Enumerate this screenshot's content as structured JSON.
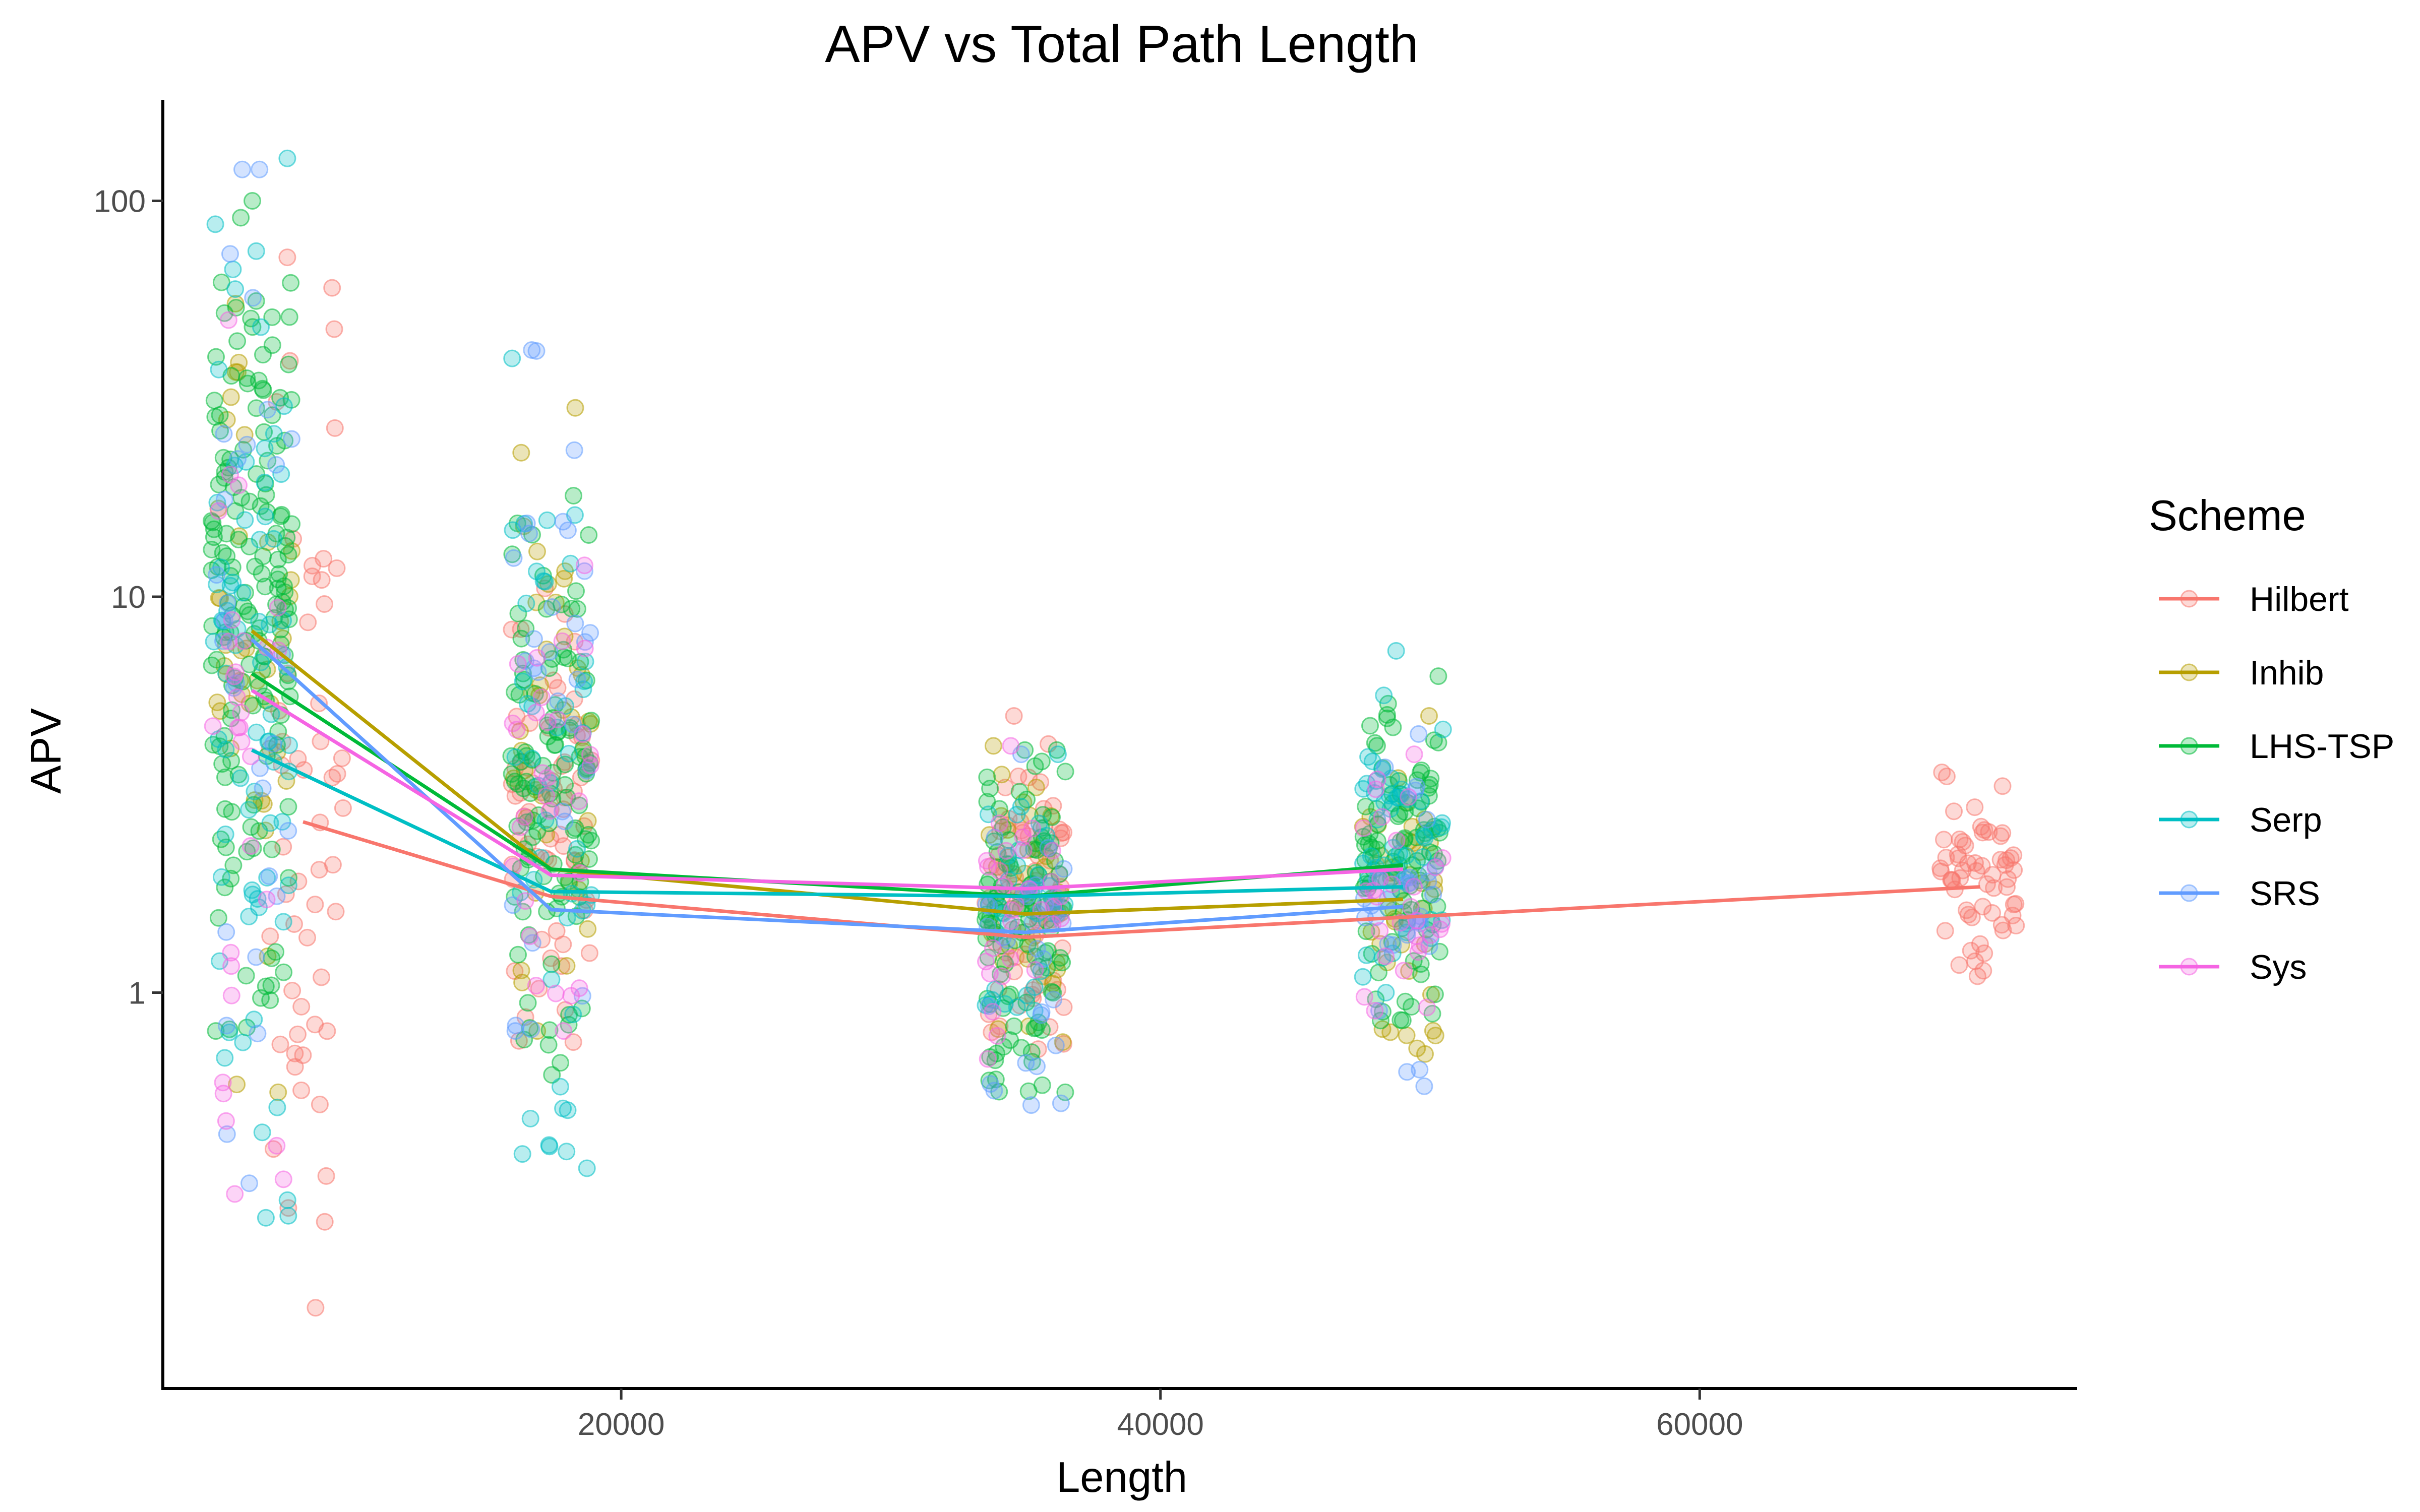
{
  "chart_data": {
    "type": "scatter",
    "title": "APV vs Total Path Length",
    "xlabel": "Length",
    "ylabel": "APV",
    "xlim": [
      3000,
      74000
    ],
    "ylim": [
      0.1,
      180
    ],
    "y_scale": "log",
    "grid": false,
    "legend_title": "Scheme",
    "legend_position": "right",
    "x_ticks": [
      20000,
      40000,
      60000
    ],
    "x_tick_labels": [
      "20000",
      "40000",
      "60000"
    ],
    "y_ticks": [
      1,
      10,
      100
    ],
    "y_tick_labels": [
      "1",
      "10",
      "100"
    ],
    "series": [
      {
        "name": "Hilbert",
        "color": "#F8766D",
        "mean_line": {
          "x": [
            8200,
            17400,
            35000,
            49000,
            70400
          ],
          "y": [
            2.7,
            1.75,
            1.38,
            1.55,
            1.85
          ]
        },
        "point_groups": [
          {
            "x": 8200,
            "ymin": 0.16,
            "ymax": 72,
            "n": 55
          },
          {
            "x": 17400,
            "ymin": 0.75,
            "ymax": 10.5,
            "n": 60
          },
          {
            "x": 35000,
            "ymin": 0.72,
            "ymax": 5.0,
            "n": 70
          },
          {
            "x": 70400,
            "ymin": 1.1,
            "ymax": 3.6,
            "n": 60
          }
        ]
      },
      {
        "name": "Inhib",
        "color": "#B79F00",
        "mean_line": {
          "x": [
            6300,
            17400,
            35000,
            49000
          ],
          "y": [
            8.2,
            2.05,
            1.58,
            1.72
          ]
        },
        "point_groups": [
          {
            "x": 6300,
            "ymin": 0.56,
            "ymax": 55,
            "n": 40
          },
          {
            "x": 17400,
            "ymin": 0.8,
            "ymax": 30,
            "n": 40
          },
          {
            "x": 35000,
            "ymin": 0.75,
            "ymax": 4.2,
            "n": 35
          },
          {
            "x": 49000,
            "ymin": 0.7,
            "ymax": 5.0,
            "n": 40
          }
        ]
      },
      {
        "name": "LHS-TSP",
        "color": "#00BA38",
        "mean_line": {
          "x": [
            6300,
            17400,
            35000,
            49000
          ],
          "y": [
            6.4,
            2.05,
            1.75,
            2.1
          ]
        },
        "point_groups": [
          {
            "x": 6300,
            "ymin": 0.8,
            "ymax": 100,
            "n": 160
          },
          {
            "x": 17400,
            "ymin": 0.62,
            "ymax": 18,
            "n": 110
          },
          {
            "x": 35000,
            "ymin": 0.56,
            "ymax": 4.1,
            "n": 110
          },
          {
            "x": 49000,
            "ymin": 0.85,
            "ymax": 6.3,
            "n": 100
          }
        ]
      },
      {
        "name": "Serp",
        "color": "#00BFC4",
        "mean_line": {
          "x": [
            6300,
            17400,
            35000,
            49000
          ],
          "y": [
            4.1,
            1.8,
            1.75,
            1.85
          ]
        },
        "point_groups": [
          {
            "x": 6300,
            "ymin": 0.27,
            "ymax": 128,
            "n": 70
          },
          {
            "x": 17400,
            "ymin": 0.36,
            "ymax": 40,
            "n": 45
          },
          {
            "x": 35000,
            "ymin": 0.9,
            "ymax": 4.0,
            "n": 30
          },
          {
            "x": 49000,
            "ymin": 1.0,
            "ymax": 7.3,
            "n": 50
          }
        ]
      },
      {
        "name": "SRS",
        "color": "#619CFF",
        "mean_line": {
          "x": [
            6300,
            17400,
            35000,
            49000
          ],
          "y": [
            7.8,
            1.62,
            1.42,
            1.65
          ]
        },
        "point_groups": [
          {
            "x": 6300,
            "ymin": 0.33,
            "ymax": 120,
            "n": 30
          },
          {
            "x": 17400,
            "ymin": 0.8,
            "ymax": 42,
            "n": 30
          },
          {
            "x": 35000,
            "ymin": 0.52,
            "ymax": 4.0,
            "n": 30
          },
          {
            "x": 49000,
            "ymin": 0.58,
            "ymax": 4.5,
            "n": 30
          }
        ]
      },
      {
        "name": "Sys",
        "color": "#F564E3",
        "mean_line": {
          "x": [
            6300,
            17400,
            35000,
            49000
          ],
          "y": [
            5.8,
            1.98,
            1.83,
            2.05
          ]
        },
        "point_groups": [
          {
            "x": 6300,
            "ymin": 0.31,
            "ymax": 50,
            "n": 30
          },
          {
            "x": 17400,
            "ymin": 0.8,
            "ymax": 12,
            "n": 30
          },
          {
            "x": 35000,
            "ymin": 0.68,
            "ymax": 4.2,
            "n": 30
          },
          {
            "x": 49000,
            "ymin": 0.9,
            "ymax": 4.0,
            "n": 30
          }
        ]
      }
    ]
  }
}
